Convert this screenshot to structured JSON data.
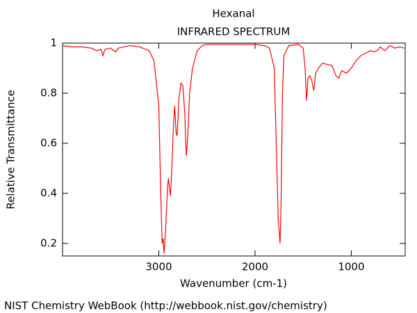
{
  "chart_data": {
    "type": "line",
    "title": "Hexanal",
    "subtitle": "INFRARED SPECTRUM",
    "x_label": "Wavenumber (cm-1)",
    "y_label": "Relative Transmittance",
    "footer": "NIST Chemistry WebBook (http://webbook.nist.gov/chemistry)",
    "xlim": [
      4000,
      440
    ],
    "ylim": [
      0.15,
      1.0
    ],
    "xticks": [
      3000,
      2000,
      1000
    ],
    "yticks": [
      0.2,
      0.4,
      0.6,
      0.8,
      1
    ],
    "grid": false,
    "series": [
      {
        "name": "Hexanal",
        "color": "#ff0000",
        "x": [
          4000,
          3900,
          3800,
          3700,
          3650,
          3600,
          3580,
          3560,
          3500,
          3450,
          3420,
          3300,
          3200,
          3100,
          3050,
          3000,
          2980,
          2965,
          2955,
          2945,
          2930,
          2910,
          2900,
          2880,
          2870,
          2850,
          2835,
          2820,
          2810,
          2790,
          2770,
          2750,
          2730,
          2715,
          2700,
          2680,
          2650,
          2600,
          2550,
          2500,
          2200,
          2000,
          1900,
          1850,
          1800,
          1780,
          1760,
          1740,
          1730,
          1715,
          1700,
          1650,
          1550,
          1500,
          1480,
          1465,
          1450,
          1430,
          1410,
          1390,
          1370,
          1340,
          1300,
          1200,
          1160,
          1130,
          1100,
          1050,
          1000,
          950,
          900,
          850,
          800,
          760,
          730,
          700,
          650,
          600,
          550,
          500,
          450
        ],
        "values": [
          0.99,
          0.985,
          0.985,
          0.98,
          0.97,
          0.975,
          0.95,
          0.975,
          0.98,
          0.965,
          0.98,
          0.99,
          0.985,
          0.97,
          0.93,
          0.75,
          0.4,
          0.2,
          0.22,
          0.16,
          0.25,
          0.42,
          0.46,
          0.39,
          0.45,
          0.65,
          0.75,
          0.64,
          0.63,
          0.78,
          0.84,
          0.83,
          0.72,
          0.55,
          0.62,
          0.8,
          0.9,
          0.97,
          0.99,
          0.995,
          0.995,
          0.995,
          0.99,
          0.98,
          0.9,
          0.6,
          0.3,
          0.2,
          0.35,
          0.8,
          0.95,
          0.99,
          0.995,
          0.98,
          0.9,
          0.77,
          0.86,
          0.87,
          0.85,
          0.81,
          0.88,
          0.9,
          0.92,
          0.91,
          0.87,
          0.86,
          0.89,
          0.88,
          0.9,
          0.93,
          0.95,
          0.96,
          0.97,
          0.965,
          0.97,
          0.985,
          0.97,
          0.99,
          0.98,
          0.985,
          0.98
        ]
      }
    ]
  }
}
